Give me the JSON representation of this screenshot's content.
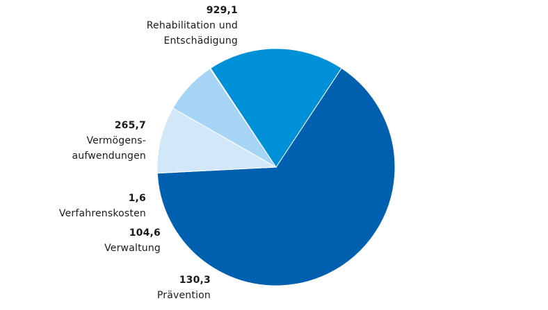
{
  "chart_data": {
    "type": "pie",
    "title": "",
    "slices": [
      {
        "key": "rehab",
        "value": 929.1,
        "value_label": "929,1",
        "name_lines": [
          "Rehabilitation und",
          "Entschädigung"
        ],
        "color": "#0060b0"
      },
      {
        "key": "praevention",
        "value": 130.3,
        "value_label": "130,3",
        "name_lines": [
          "Prävention"
        ],
        "color": "#d2e7f8"
      },
      {
        "key": "verwaltung",
        "value": 104.6,
        "value_label": "104,6",
        "name_lines": [
          "Verwaltung"
        ],
        "color": "#a5d4f5"
      },
      {
        "key": "verfahrenskosten",
        "value": 1.6,
        "value_label": "1,6",
        "name_lines": [
          "Verfahrenskosten"
        ],
        "color": "#75c1ef"
      },
      {
        "key": "vermoegensaufwendungen",
        "value": 265.7,
        "value_label": "265,7",
        "name_lines": [
          "Vermögens-",
          "aufwendungen"
        ],
        "color": "#0090d8"
      }
    ]
  }
}
